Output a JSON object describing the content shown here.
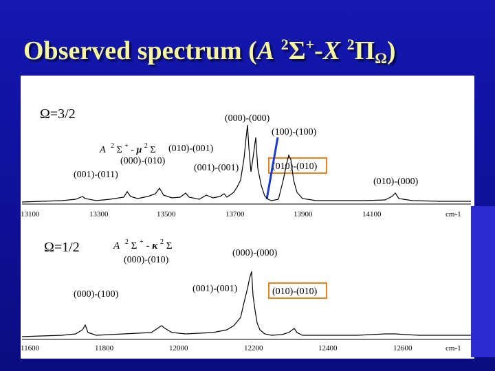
{
  "title": {
    "part1": "Observed spectrum ( ",
    "A": "A",
    "sup1": "2",
    "sigma": "Σ",
    "plus": "+",
    "dash": " - ",
    "X": "X",
    "sup2": "2",
    "pi": "Π",
    "omega_sub": "Ω",
    "close": " )"
  },
  "colors": {
    "background": "#1418b0",
    "title": "#f4f6a0",
    "highlight_box": "#e8821e",
    "marker_line": "#1a3cc8"
  },
  "top_panel": {
    "omega_label": "Ω=3/2",
    "band_labels": {
      "b000_000": "(000)-(000)",
      "b100_100": "(100)-(100)",
      "b010_001": "(010)-(001)",
      "b000_010": "(000)-(010)",
      "b001_001": "(001)-(001)",
      "b010_010": "(010)-(010)",
      "b001_011": "(001)-(011)",
      "b010_000": "(010)-(000)"
    },
    "perturber": {
      "A": "A",
      "s1": "2",
      "sig": "Σ",
      "plus": "+",
      "dash": " - ",
      "mu": "μ",
      "s2": "2",
      "sig2": "Σ"
    },
    "axis_ticks": [
      "13100",
      "13300",
      "13500",
      "13700",
      "13900",
      "14100"
    ],
    "axis_unit": "cm-1"
  },
  "bottom_panel": {
    "omega_label": "Ω=1/2",
    "band_labels": {
      "b000_010": "(000)-(010)",
      "b000_000": "(000)-(000)",
      "b000_100": "(000)-(100)",
      "b001_001": "(001)-(001)",
      "b010_010": "(010)-(010)"
    },
    "perturber": {
      "A": "A",
      "s1": "2",
      "sig": "Σ",
      "plus": "+",
      "dash": " - ",
      "kappa": "κ",
      "s2": "2",
      "sig2": "Σ"
    },
    "axis_ticks": [
      "11600",
      "11800",
      "12000",
      "12200",
      "12400",
      "12600"
    ],
    "axis_unit": "cm-1"
  }
}
